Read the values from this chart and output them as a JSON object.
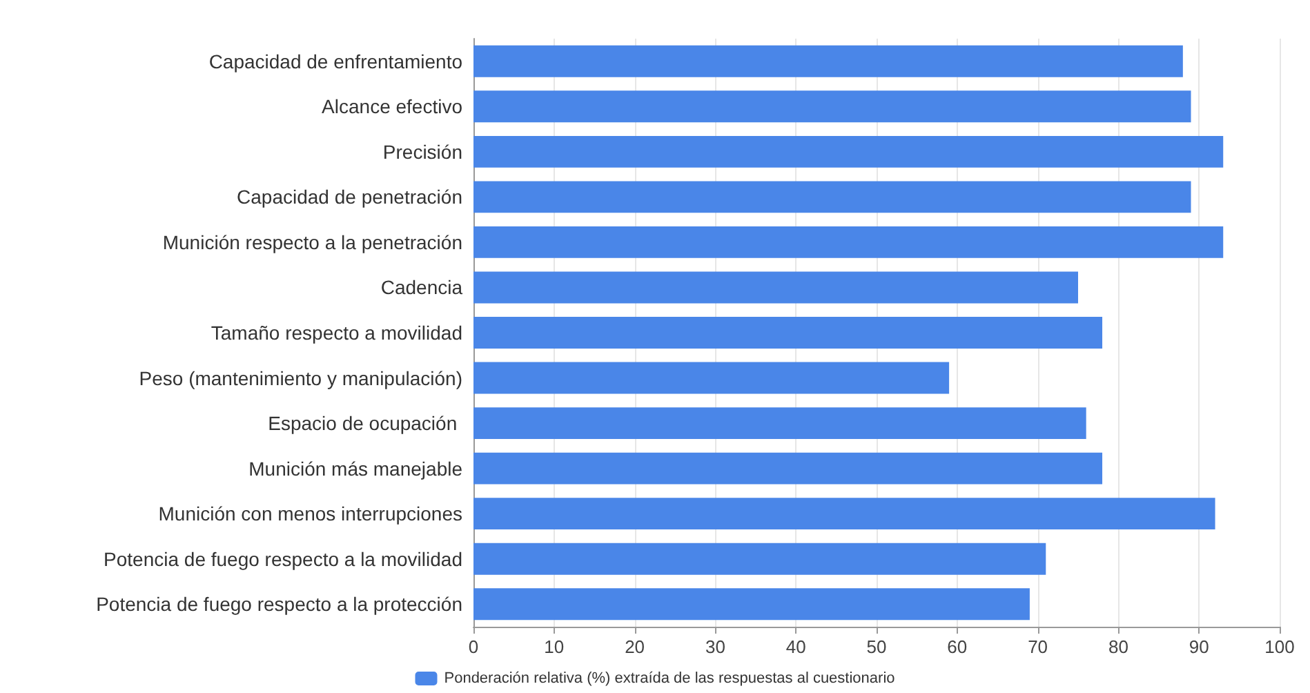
{
  "chart_data": {
    "type": "bar",
    "orientation": "horizontal",
    "categories": [
      "Capacidad de enfrentamiento",
      "Alcance efectivo",
      "Precisión",
      "Capacidad de penetración",
      "Munición respecto a la penetración",
      "Cadencia",
      "Tamaño respecto a movilidad",
      "Peso (mantenimiento y manipulación)",
      "Espacio de ocupación ",
      "Munición más manejable",
      "Munición con menos interrupciones",
      "Potencia de fuego respecto a la movilidad",
      "Potencia de fuego respecto a la protección"
    ],
    "series": [
      {
        "name": "Ponderación relativa (%) extraída de las respuestas al cuestionario",
        "color": "#4a86e8",
        "values": [
          88,
          89,
          93,
          89,
          93,
          75,
          78,
          59,
          76,
          78,
          92,
          71,
          69
        ]
      }
    ],
    "xlim": [
      0,
      100
    ],
    "xticks": [
      0,
      10,
      20,
      30,
      40,
      50,
      60,
      70,
      80,
      90,
      100
    ],
    "grid": "x",
    "legend": "bottom"
  }
}
